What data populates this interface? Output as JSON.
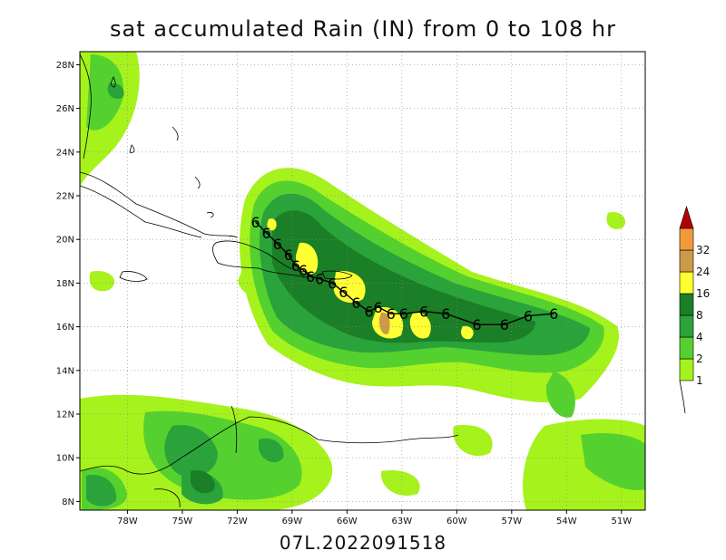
{
  "title": "sat accumulated Rain (IN) from 0 to 108 hr",
  "footer": "07L.2022091518",
  "lat_ticks": [
    "28N",
    "26N",
    "24N",
    "22N",
    "20N",
    "18N",
    "16N",
    "14N",
    "12N",
    "10N",
    "8N"
  ],
  "lon_ticks": [
    "78W",
    "75W",
    "72W",
    "69W",
    "66W",
    "63W",
    "60W",
    "57W",
    "54W",
    "51W"
  ],
  "colorbar": {
    "labels": [
      "1",
      "2",
      "4",
      "8",
      "16",
      "24",
      "32"
    ],
    "colors": [
      "#a6f21c",
      "#55d12f",
      "#2aa33a",
      "#1a7f26",
      "#ffff33",
      "#cd9a4a",
      "#f29a3a",
      "#b30000"
    ]
  },
  "legend_colors": {
    "rain_1": "#a6f21c",
    "rain_2": "#55d12f",
    "rain_4": "#2aa33a",
    "rain_8": "#1a7f26",
    "rain_16": "#ffff33",
    "rain_24": "#cd9a4a",
    "track": "#000000"
  },
  "storm_track": {
    "symbol": "6",
    "points": [
      [
        -71.0,
        20.8
      ],
      [
        -70.4,
        20.3
      ],
      [
        -69.8,
        19.8
      ],
      [
        -69.2,
        19.3
      ],
      [
        -68.8,
        18.8
      ],
      [
        -68.4,
        18.6
      ],
      [
        -68.0,
        18.3
      ],
      [
        -67.5,
        18.2
      ],
      [
        -66.8,
        18.0
      ],
      [
        -66.2,
        17.6
      ],
      [
        -65.5,
        17.1
      ],
      [
        -64.8,
        16.7
      ],
      [
        -64.3,
        16.9
      ],
      [
        -63.6,
        16.6
      ],
      [
        -62.9,
        16.6
      ],
      [
        -61.8,
        16.7
      ],
      [
        -60.6,
        16.6
      ],
      [
        -58.9,
        16.1
      ],
      [
        -57.4,
        16.1
      ],
      [
        -56.1,
        16.5
      ],
      [
        -54.7,
        16.6
      ]
    ]
  }
}
